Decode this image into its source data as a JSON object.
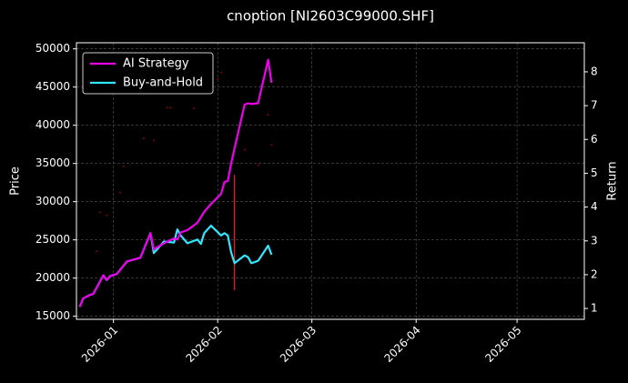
{
  "chart_data": {
    "type": "line",
    "title": "cnoption [NI2603C99000.SHF]",
    "y_label": "Price",
    "y2_label": "Return",
    "xlim": [
      "2025-12-21",
      "2026-05-21"
    ],
    "xticks": [
      {
        "value": "2026-01-01",
        "label": "2026-01"
      },
      {
        "value": "2026-02-01",
        "label": "2026-02"
      },
      {
        "value": "2026-03-01",
        "label": "2026-03"
      },
      {
        "value": "2026-04-01",
        "label": "2026-04"
      },
      {
        "value": "2026-05-01",
        "label": "2026-05"
      }
    ],
    "ylim": [
      14600,
      50800
    ],
    "yticks": [
      15000,
      20000,
      25000,
      30000,
      35000,
      40000,
      45000,
      50000
    ],
    "y2lim": [
      0.68,
      8.86
    ],
    "y2ticks": [
      1,
      2,
      3,
      4,
      5,
      6,
      7,
      8
    ],
    "grid": true,
    "legend": "upper left",
    "x": [
      "2025-12-22",
      "2025-12-23",
      "2025-12-25",
      "2025-12-26",
      "2025-12-29",
      "2025-12-30",
      "2025-12-31",
      "2026-01-02",
      "2026-01-05",
      "2026-01-09",
      "2026-01-12",
      "2026-01-13",
      "2026-01-16",
      "2026-01-19",
      "2026-01-20",
      "2026-01-21",
      "2026-01-23",
      "2026-01-26",
      "2026-01-27",
      "2026-01-28",
      "2026-01-30",
      "2026-02-02",
      "2026-02-03",
      "2026-02-04",
      "2026-02-05",
      "2026-02-06",
      "2026-02-09",
      "2026-02-10",
      "2026-02-11",
      "2026-02-13",
      "2026-02-16",
      "2026-02-17"
    ],
    "series": [
      {
        "name": "AI Strategy",
        "color": "#ee00ee",
        "axis": "y2",
        "values": [
          1.05,
          1.3,
          1.4,
          1.43,
          1.98,
          1.84,
          1.96,
          2.02,
          2.39,
          2.5,
          3.23,
          2.75,
          2.93,
          3.07,
          3.04,
          3.25,
          3.32,
          3.54,
          3.7,
          3.86,
          4.09,
          4.39,
          4.74,
          4.77,
          5.29,
          5.74,
          7.03,
          7.07,
          7.05,
          7.07,
          8.36,
          7.68
        ]
      },
      {
        "name": "Buy-and-Hold",
        "color": "#33e6ff",
        "axis": "y2",
        "values": [
          1.05,
          1.3,
          1.4,
          1.43,
          1.98,
          1.84,
          1.96,
          2.02,
          2.39,
          2.5,
          3.23,
          2.64,
          2.98,
          2.95,
          3.34,
          3.16,
          2.93,
          3.04,
          2.91,
          3.23,
          3.45,
          3.16,
          3.23,
          3.16,
          2.66,
          2.34,
          2.57,
          2.52,
          2.34,
          2.41,
          2.86,
          2.59
        ]
      }
    ],
    "points": {
      "color": "#8b0000",
      "x": [
        "2025-12-27",
        "2025-12-28",
        "2025-12-30",
        "2026-01-03",
        "2026-01-04",
        "2026-01-10",
        "2026-01-13",
        "2026-01-17",
        "2026-01-18",
        "2026-01-25",
        "2026-02-01",
        "2026-02-02",
        "2026-02-09",
        "2026-02-13",
        "2026-02-16",
        "2026-02-17"
      ],
      "values": [
        23500,
        28600,
        28200,
        31200,
        34600,
        38300,
        38000,
        42300,
        42300,
        42200,
        46070,
        46900,
        36800,
        34800,
        41400,
        37400
      ]
    },
    "vline": {
      "color": "#ff1a1a",
      "x": "2026-02-06",
      "low": 18400,
      "high": 33500
    }
  }
}
